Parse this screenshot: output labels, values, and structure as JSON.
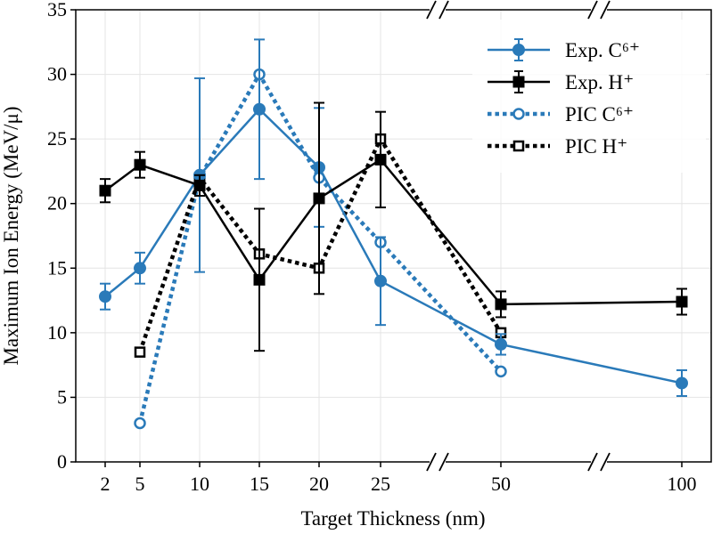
{
  "chart_data": {
    "type": "line",
    "xlabel": "Target Thickness (nm)",
    "ylabel": "Maximum Ion Energy (MeV/μ)",
    "ylim": [
      0,
      35
    ],
    "yticks": [
      0,
      5,
      10,
      15,
      20,
      25,
      30,
      35
    ],
    "x_categories": [
      "2",
      "5",
      "10",
      "15",
      "20",
      "25",
      "50",
      "100"
    ],
    "x_axis_breaks": [
      "between 25 and 50",
      "between 50 and 100"
    ],
    "grid": true,
    "legend_position": "top-right",
    "series": [
      {
        "name": "Exp. C⁶⁺",
        "color": "#2a7ab9",
        "linestyle": "solid",
        "marker": "circle-filled",
        "errorbars": true,
        "points": [
          {
            "x": "2",
            "y": 12.8,
            "err": 1.0
          },
          {
            "x": "5",
            "y": 15.0,
            "err": 1.2
          },
          {
            "x": "10",
            "y": 22.2,
            "err": 7.5
          },
          {
            "x": "15",
            "y": 27.3,
            "err": 5.4
          },
          {
            "x": "20",
            "y": 22.8,
            "err": 4.6
          },
          {
            "x": "25",
            "y": 14.0,
            "err": 3.4
          },
          {
            "x": "50",
            "y": 9.1,
            "err": 0.8
          },
          {
            "x": "100",
            "y": 6.1,
            "err": 1.0
          }
        ]
      },
      {
        "name": "Exp. H⁺",
        "color": "#000000",
        "linestyle": "solid",
        "marker": "square-filled",
        "errorbars": true,
        "points": [
          {
            "x": "2",
            "y": 21.0,
            "err": 0.9
          },
          {
            "x": "5",
            "y": 23.0,
            "err": 1.0
          },
          {
            "x": "10",
            "y": 21.4,
            "err": 0.8
          },
          {
            "x": "15",
            "y": 14.1,
            "err": 5.5
          },
          {
            "x": "20",
            "y": 20.4,
            "err": 7.4
          },
          {
            "x": "25",
            "y": 23.4,
            "err": 3.7
          },
          {
            "x": "50",
            "y": 12.2,
            "err": 1.0
          },
          {
            "x": "100",
            "y": 12.4,
            "err": 1.0
          }
        ]
      },
      {
        "name": "PIC C⁶⁺",
        "color": "#2a7ab9",
        "linestyle": "dotted",
        "marker": "circle-open",
        "errorbars": false,
        "points": [
          {
            "x": "5",
            "y": 3.0
          },
          {
            "x": "10",
            "y": 22.0
          },
          {
            "x": "15",
            "y": 30.0
          },
          {
            "x": "20",
            "y": 22.0
          },
          {
            "x": "25",
            "y": 17.0
          },
          {
            "x": "50",
            "y": 7.0
          }
        ]
      },
      {
        "name": "PIC H⁺",
        "color": "#000000",
        "linestyle": "dotted",
        "marker": "square-open",
        "errorbars": false,
        "points": [
          {
            "x": "5",
            "y": 8.5
          },
          {
            "x": "10",
            "y": 22.0
          },
          {
            "x": "15",
            "y": 16.1
          },
          {
            "x": "20",
            "y": 15.0
          },
          {
            "x": "25",
            "y": 25.0
          },
          {
            "x": "50",
            "y": 10.0
          }
        ]
      }
    ]
  }
}
